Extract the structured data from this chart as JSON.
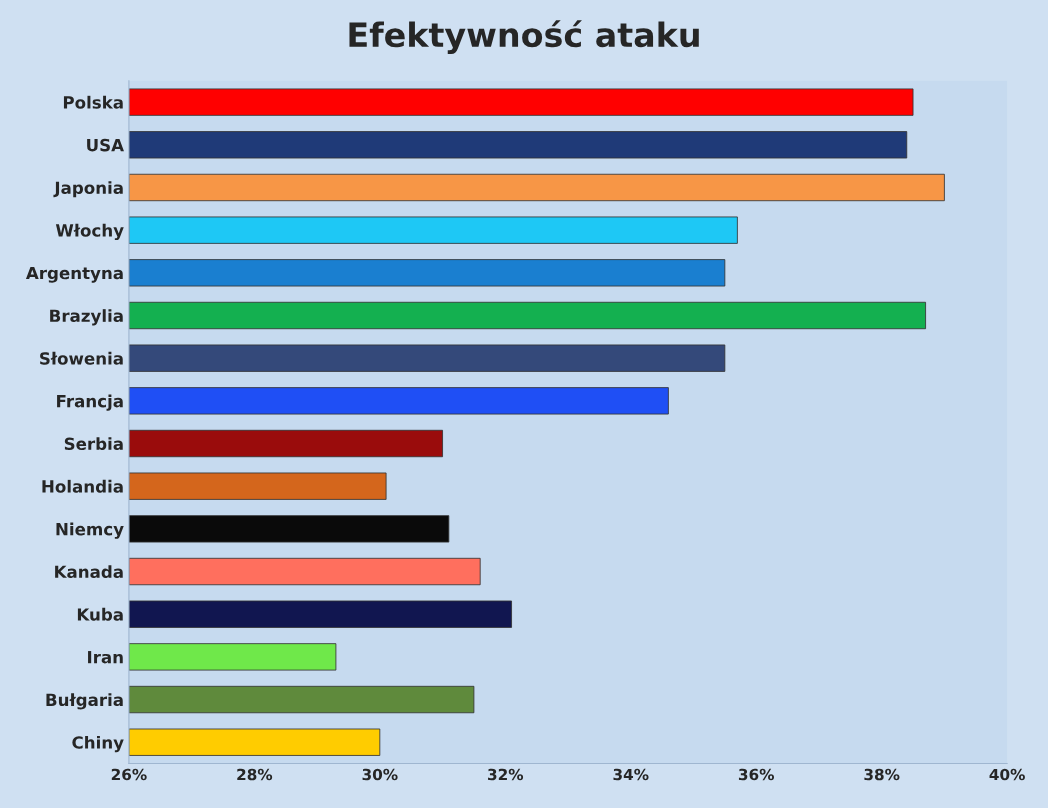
{
  "chart_data": {
    "type": "bar",
    "title": "Efektywność ataku",
    "orientation": "horizontal",
    "categories": [
      "Polska",
      "USA",
      "Japonia",
      "Włochy",
      "Argentyna",
      "Brazylia",
      "Słowenia",
      "Francja",
      "Serbia",
      "Holandia",
      "Niemcy",
      "Kanada",
      "Kuba",
      "Iran",
      "Bułgaria",
      "Chiny"
    ],
    "values": [
      38.5,
      38.4,
      39.0,
      35.7,
      35.5,
      38.7,
      35.5,
      34.6,
      31.0,
      30.1,
      31.1,
      31.6,
      32.1,
      29.3,
      31.5,
      30.0
    ],
    "colors": [
      "#ff0000",
      "#1f3a78",
      "#f79646",
      "#1ec8f5",
      "#1a7fd0",
      "#14b050",
      "#34497a",
      "#1f4ff5",
      "#9a0c0c",
      "#d4661c",
      "#0a0a0a",
      "#ff6f5e",
      "#111650",
      "#6fe84a",
      "#5f8a3c",
      "#ffcc00"
    ],
    "xlim": [
      26,
      40
    ],
    "xticks": [
      {
        "value": 26,
        "label": "26%"
      },
      {
        "value": 28,
        "label": "28%"
      },
      {
        "value": 30,
        "label": "30%"
      },
      {
        "value": 32,
        "label": "32%"
      },
      {
        "value": 34,
        "label": "34%"
      },
      {
        "value": 36,
        "label": "36%"
      },
      {
        "value": 38,
        "label": "38%"
      },
      {
        "value": 40,
        "label": "40%"
      }
    ],
    "grid": false,
    "legend": false
  }
}
